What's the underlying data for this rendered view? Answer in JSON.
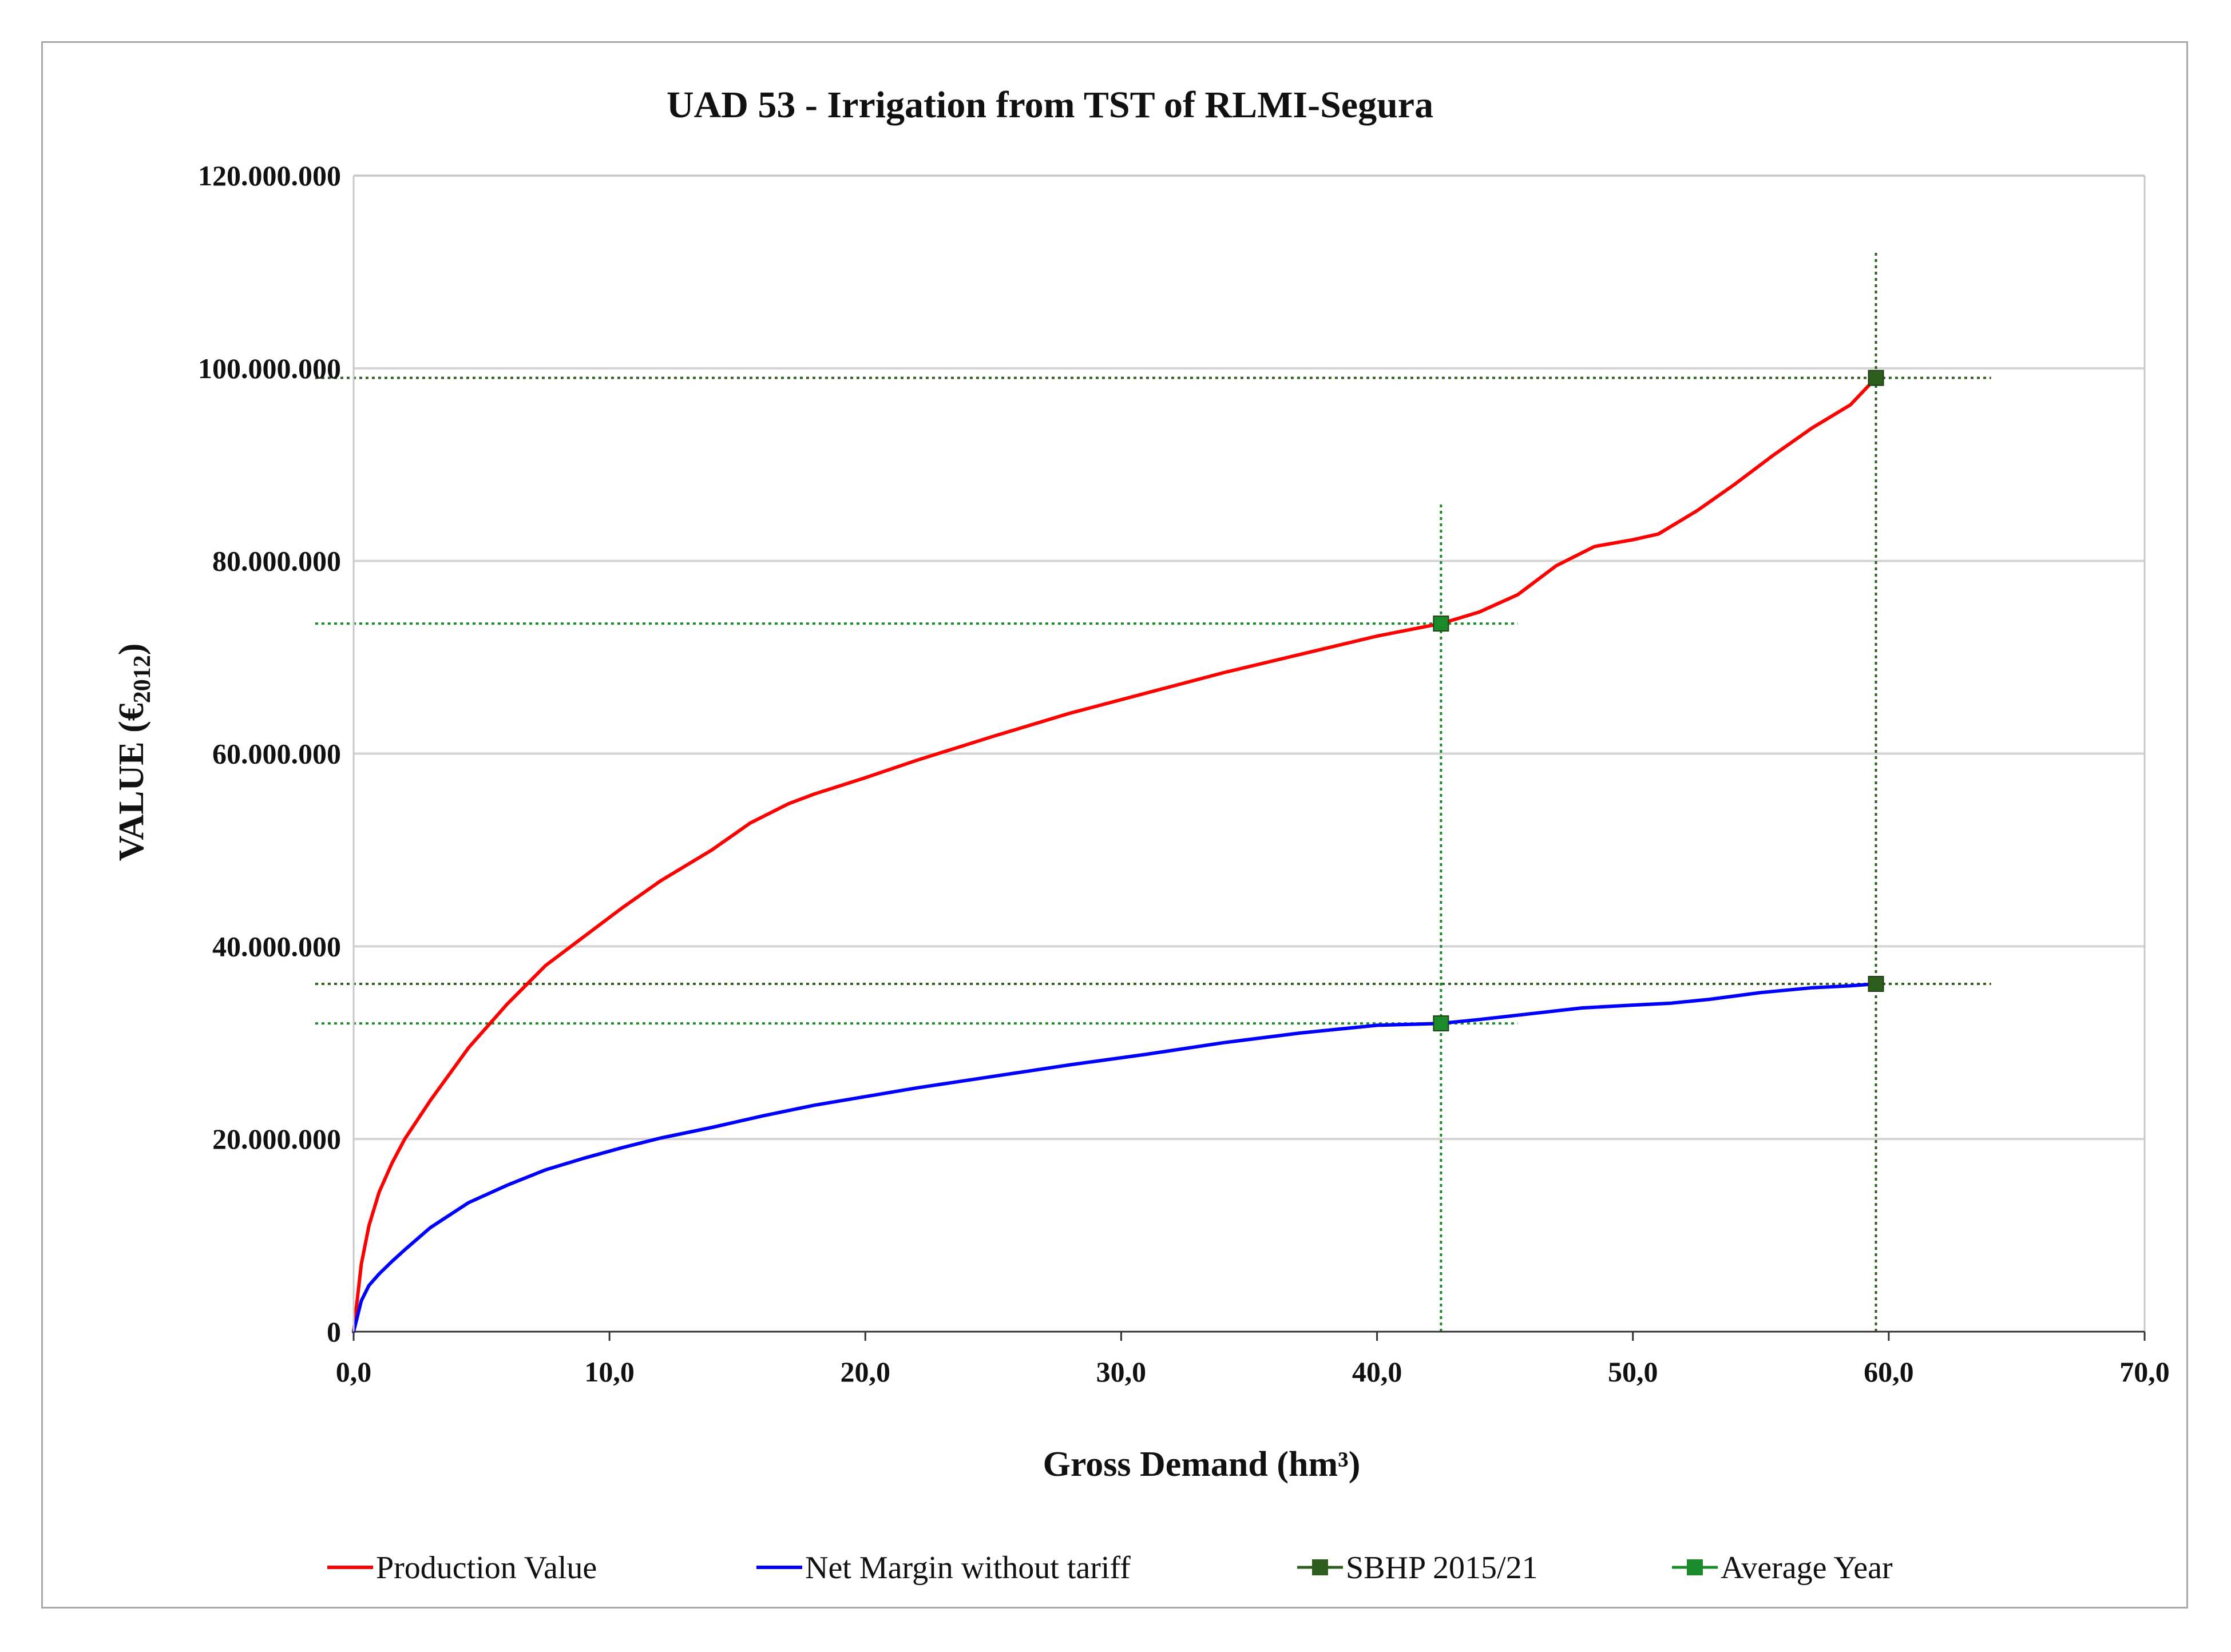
{
  "chart_data": {
    "type": "line",
    "title": "UAD 53 - Irrigation from TST of RLMI-Segura",
    "xlabel": "Gross Demand (hm³)",
    "ylabel": "VALUE (€2012)",
    "ylabel_main": "VALUE  (€",
    "ylabel_sub": "2012",
    "ylabel_end": ")",
    "xlim": [
      0,
      70
    ],
    "ylim": [
      0,
      120000000
    ],
    "x_ticks": [
      0,
      10,
      20,
      30,
      40,
      50,
      60,
      70
    ],
    "x_tick_labels": [
      "0,0",
      "10,0",
      "20,0",
      "30,0",
      "40,0",
      "50,0",
      "60,0",
      "70,0"
    ],
    "y_ticks": [
      0,
      20000000,
      40000000,
      60000000,
      80000000,
      100000000,
      120000000
    ],
    "y_tick_labels": [
      "0",
      "20.000.000",
      "40.000.000",
      "60.000.000",
      "80.000.000",
      "100.000.000",
      "120.000.000"
    ],
    "grid": "horizontal",
    "legend_position": "bottom",
    "series": [
      {
        "name": "Production Value",
        "color": "#ff0000",
        "x": [
          0,
          0.3,
          0.6,
          1.0,
          1.5,
          2.0,
          3.0,
          4.5,
          6.0,
          7.5,
          9.0,
          10.5,
          12.0,
          14.0,
          15.5,
          17.0,
          18.0,
          20.0,
          22.0,
          25.0,
          28.0,
          31.0,
          34.0,
          37.0,
          40.0,
          42.5,
          44.0,
          45.5,
          47.0,
          48.5,
          50.0,
          51.0,
          52.5,
          54.0,
          55.5,
          57.0,
          58.5,
          59.5
        ],
        "y": [
          0,
          7000000,
          11000000,
          14500000,
          17500000,
          20000000,
          24000000,
          29500000,
          34000000,
          38000000,
          41000000,
          44000000,
          46800000,
          50000000,
          52800000,
          54800000,
          55800000,
          57500000,
          59300000,
          61800000,
          64200000,
          66300000,
          68400000,
          70300000,
          72200000,
          73500000,
          74700000,
          76500000,
          79500000,
          81500000,
          82200000,
          82800000,
          85200000,
          88000000,
          91000000,
          93800000,
          96200000,
          99000000
        ]
      },
      {
        "name": "Net Margin without tariff",
        "color": "#0000ff",
        "x": [
          0,
          0.3,
          0.6,
          1.0,
          1.5,
          2.0,
          3.0,
          4.5,
          6.0,
          7.5,
          9.0,
          10.5,
          12.0,
          14.0,
          16.0,
          18.0,
          20.0,
          22.0,
          25.0,
          28.0,
          31.0,
          34.0,
          37.0,
          40.0,
          42.5,
          44.0,
          46.0,
          48.0,
          50.0,
          51.5,
          53.0,
          55.0,
          57.0,
          58.5,
          59.5
        ],
        "y": [
          0,
          3200000,
          4800000,
          6000000,
          7300000,
          8500000,
          10800000,
          13400000,
          15200000,
          16800000,
          18000000,
          19100000,
          20100000,
          21200000,
          22400000,
          23500000,
          24400000,
          25300000,
          26500000,
          27700000,
          28800000,
          30000000,
          31000000,
          31800000,
          32000000,
          32400000,
          33000000,
          33600000,
          33900000,
          34100000,
          34500000,
          35200000,
          35700000,
          35900000,
          36100000
        ]
      },
      {
        "name": "SBHP 2015/21",
        "color": "#2e5e1e",
        "marker": "square",
        "points": [
          {
            "x": 59.5,
            "y": 99000000
          },
          {
            "x": 59.5,
            "y": 36100000
          }
        ]
      },
      {
        "name": "Average Year",
        "color": "#1a8a2a",
        "marker": "square",
        "points": [
          {
            "x": 42.5,
            "y": 73500000
          },
          {
            "x": 42.5,
            "y": 32000000
          }
        ]
      }
    ],
    "reference_lines": [
      {
        "series": "SBHP 2015/21",
        "orientation": "vertical",
        "value": 59.5,
        "from": 0,
        "to": 112000000
      },
      {
        "series": "SBHP 2015/21",
        "orientation": "horizontal",
        "value": 99000000,
        "from": -1.5,
        "to": 64
      },
      {
        "series": "SBHP 2015/21",
        "orientation": "horizontal",
        "value": 36100000,
        "from": -1.5,
        "to": 64
      },
      {
        "series": "Average Year",
        "orientation": "vertical",
        "value": 42.5,
        "from": 0,
        "to": 86000000
      },
      {
        "series": "Average Year",
        "orientation": "horizontal",
        "value": 73500000,
        "from": -1.5,
        "to": 45.5
      },
      {
        "series": "Average Year",
        "orientation": "horizontal",
        "value": 32000000,
        "from": -1.5,
        "to": 45.5
      }
    ]
  }
}
